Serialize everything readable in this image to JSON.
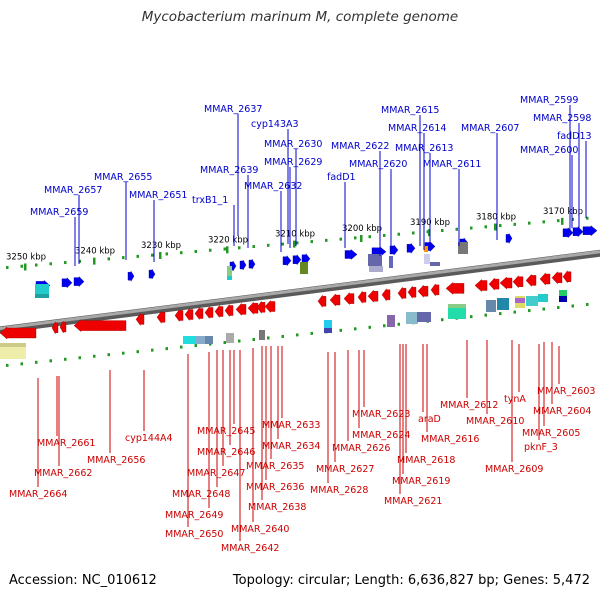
{
  "title": "Mycobacterium marinum M, complete genome",
  "footer": {
    "accession": "Accession: NC_010612",
    "summary": "Topology: circular; Length: 6,636,827 bp; Genes: 5,472"
  },
  "colors": {
    "forward_gene": "#0000ee",
    "reverse_gene": "#ee0000",
    "backbone": "#808080",
    "tick": "#229922",
    "forward_label": "#0000cc",
    "reverse_label": "#cc0000"
  },
  "ruler_labels": [
    "3250 kbp",
    "3240 kbp",
    "3230 kbp",
    "3220 kbp",
    "3210 kbp",
    "3200 kbp",
    "3190 kbp",
    "3180 kbp",
    "3170 kbp"
  ],
  "forward_genes": [
    "MMAR_2637",
    "MMAR_2615",
    "MMAR_2599",
    "MMAR_2598",
    "fadD13",
    "cyp143A3",
    "MMAR_2614",
    "MMAR_2607",
    "MMAR_2630",
    "MMAR_2622",
    "MMAR_2613",
    "MMAR_2600",
    "MMAR_2629",
    "MMAR_2620",
    "MMAR_2611",
    "MMAR_2639",
    "MMAR_2655",
    "fadD1",
    "MMAR_2632",
    "MMAR_2657",
    "MMAR_2651",
    "trxB1_1",
    "MMAR_2659"
  ],
  "reverse_genes": [
    "MMAR_2603",
    "MMAR_2612",
    "tynA",
    "MMAR_2604",
    "MMAR_2623",
    "araD",
    "MMAR_2610",
    "MMAR_2633",
    "MMAR_2645",
    "MMAR_2624",
    "MMAR_2616",
    "MMAR_2605",
    "MMAR_2661",
    "cyp144A4",
    "MMAR_2634",
    "MMAR_2646",
    "pknF_3",
    "MMAR_2656",
    "MMAR_2618",
    "MMAR_2635",
    "MMAR_2627",
    "MMAR_2662",
    "MMAR_2647",
    "MMAR_2626",
    "MMAR_2609",
    "MMAR_2619",
    "MMAR_2636",
    "MMAR_2664",
    "MMAR_2648",
    "MMAR_2628",
    "MMAR_2621",
    "MMAR_2638",
    "MMAR_2649",
    "MMAR_2640",
    "MMAR_2650",
    "MMAR_2642"
  ]
}
